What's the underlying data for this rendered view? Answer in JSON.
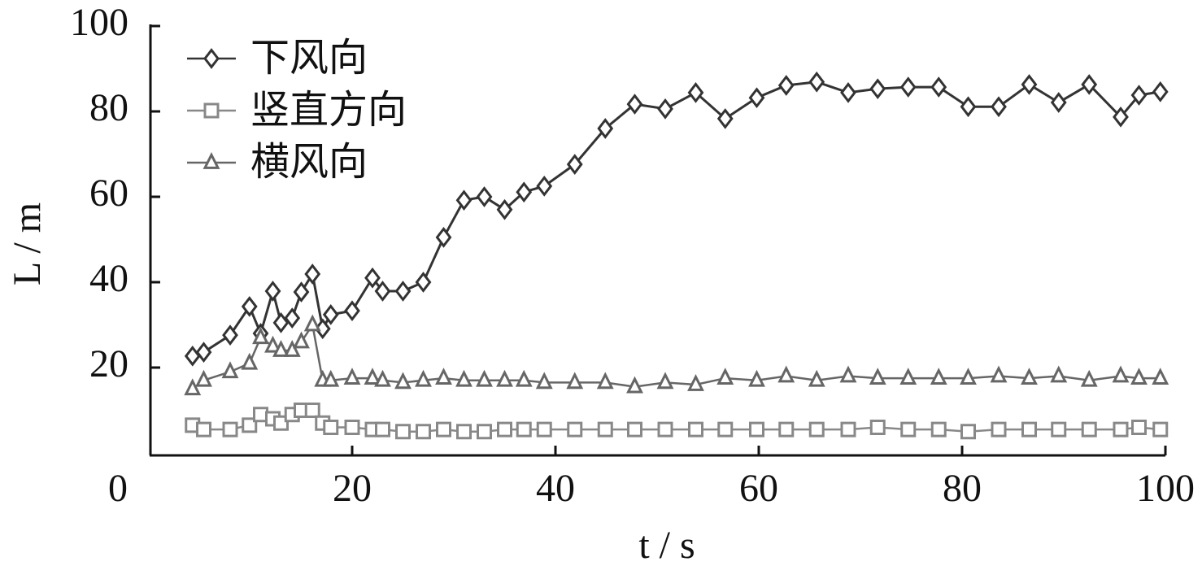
{
  "chart_data": {
    "type": "line",
    "x_label": "t / s",
    "y_label": "L / m",
    "x": [
      4.3,
      5.4,
      8,
      9.9,
      11,
      12.2,
      13,
      14.1,
      15,
      16.1,
      17.1,
      17.9,
      20,
      22,
      23,
      25,
      27,
      29,
      31,
      33,
      35,
      36.9,
      38.9,
      41.9,
      44.9,
      47.8,
      50.8,
      53.8,
      56.7,
      59.8,
      62.7,
      65.7,
      68.8,
      71.7,
      74.7,
      77.7,
      80.6,
      83.6,
      86.6,
      89.5,
      92.5,
      95.6,
      97.4,
      99.5
    ],
    "series": [
      {
        "name": "下风向",
        "color": "#333333",
        "marker": "diamond",
        "values": [
          22.7,
          23.6,
          27.6,
          34.3,
          28,
          37.9,
          30.5,
          31.6,
          37.7,
          41.9,
          29.1,
          32.4,
          33.3,
          41,
          37.9,
          37.9,
          40,
          50.5,
          59.2,
          60,
          57,
          61.1,
          62.5,
          67.6,
          76,
          81.7,
          80.6,
          84.4,
          78.3,
          83.2,
          86.1,
          86.9,
          84.4,
          85.3,
          85.7,
          85.7,
          81.1,
          81.1,
          86.3,
          82.1,
          86.3,
          78.7,
          83.8,
          84.6
        ]
      },
      {
        "name": "竖直方向",
        "color": "#888888",
        "marker": "square",
        "values": [
          6.5,
          5.5,
          5.5,
          6.5,
          9,
          8,
          7,
          9,
          10,
          10,
          7,
          6,
          6,
          5.5,
          5.5,
          5,
          5,
          5.5,
          5,
          5,
          5.5,
          5.5,
          5.5,
          5.5,
          5.5,
          5.5,
          5.5,
          5.5,
          5.5,
          5.5,
          5.5,
          5.5,
          5.5,
          6,
          5.5,
          5.5,
          5,
          5.5,
          5.5,
          5.5,
          5.5,
          5.5,
          6,
          5.5
        ]
      },
      {
        "name": "横风向",
        "color": "#666666",
        "marker": "triangle",
        "values": [
          15,
          17,
          19,
          21,
          27,
          25,
          24,
          24,
          26,
          30,
          17,
          17,
          17.5,
          17.5,
          17,
          16.5,
          17,
          17.5,
          17,
          17,
          17,
          17,
          16.5,
          16.5,
          16.5,
          15.5,
          16.5,
          16,
          17.5,
          17,
          18,
          17,
          18,
          17.5,
          17.5,
          17.5,
          17.5,
          18,
          17.5,
          18,
          17,
          18,
          17.5,
          17.5
        ]
      }
    ],
    "xlim": [
      0,
      100
    ],
    "xticks": [
      0,
      20,
      40,
      60,
      80,
      100
    ],
    "ylim": [
      0,
      100
    ],
    "yticks": [
      20,
      40,
      60,
      80,
      100
    ],
    "legend": "upper left"
  }
}
